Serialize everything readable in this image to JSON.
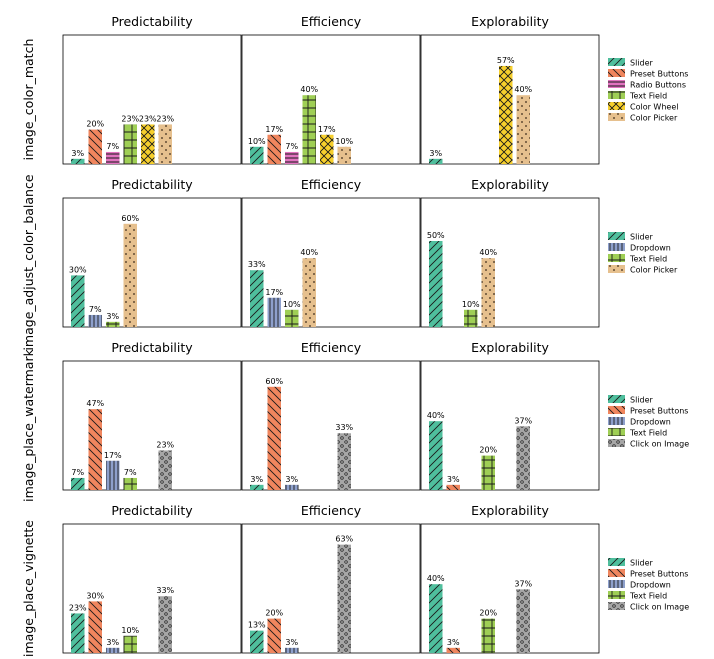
{
  "colors": {
    "Slider": "#4fbf9d",
    "Preset Buttons": "#f0865e",
    "Radio Buttons": "#e273c0",
    "Dropdown": "#8ea0cc",
    "Text Field": "#9fcf55",
    "Color Wheel": "#f6cf2c",
    "Color Picker": "#e6c08e",
    "Click on Image": "#a6a6a6"
  },
  "patterns": {
    "Slider": "diag-fwd",
    "Preset Buttons": "diag-back",
    "Radio Buttons": "horiz",
    "Dropdown": "vert",
    "Text Field": "grid",
    "Color Wheel": "xhatch",
    "Color Picker": "dots",
    "Click on Image": "circles"
  },
  "chart_data": [
    {
      "type": "bar",
      "row_label": "image_color_match",
      "series": [
        "Slider",
        "Preset Buttons",
        "Radio Buttons",
        "Text Field",
        "Color Wheel",
        "Color Picker"
      ],
      "ylim": [
        0,
        75
      ],
      "panels": [
        {
          "title": "Predictability",
          "values": [
            3,
            20,
            7,
            23,
            23,
            23
          ],
          "labels": [
            "3%",
            "20%",
            "7%",
            "23%",
            "23%",
            "23%"
          ]
        },
        {
          "title": "Efficiency",
          "values": [
            10,
            17,
            7,
            40,
            17,
            10
          ],
          "labels": [
            "10%",
            "17%",
            "7%",
            "40%",
            "17%",
            "10%"
          ]
        },
        {
          "title": "Explorability",
          "values": [
            3,
            0,
            0,
            0,
            57,
            40
          ],
          "labels": [
            "3%",
            "",
            "",
            "",
            "57%",
            "40%"
          ]
        }
      ]
    },
    {
      "type": "bar",
      "row_label": "image_adjust_color_balance",
      "series": [
        "Slider",
        "Dropdown",
        "Text Field",
        "Color Picker"
      ],
      "ylim": [
        0,
        75
      ],
      "panels": [
        {
          "title": "Predictability",
          "values": [
            30,
            7,
            3,
            60
          ],
          "labels": [
            "30%",
            "7%",
            "3%",
            "60%"
          ]
        },
        {
          "title": "Efficiency",
          "values": [
            33,
            17,
            10,
            40
          ],
          "labels": [
            "33%",
            "17%",
            "10%",
            "40%"
          ]
        },
        {
          "title": "Explorability",
          "values": [
            50,
            0,
            10,
            40
          ],
          "labels": [
            "50%",
            "",
            "10%",
            "40%"
          ]
        }
      ]
    },
    {
      "type": "bar",
      "row_label": "image_place_watermark",
      "series": [
        "Slider",
        "Preset Buttons",
        "Dropdown",
        "Text Field",
        "Click on Image"
      ],
      "ylim": [
        0,
        75
      ],
      "panels": [
        {
          "title": "Predictability",
          "values": [
            7,
            47,
            17,
            7,
            0,
            23
          ],
          "labels": [
            "7%",
            "47%",
            "17%",
            "7%",
            "",
            "23%"
          ],
          "slots": [
            0,
            1,
            2,
            3,
            4,
            4
          ]
        },
        {
          "title": "Efficiency",
          "values": [
            3,
            60,
            3,
            0,
            0,
            33
          ],
          "labels": [
            "3%",
            "60%",
            "3%",
            "",
            "",
            "33%"
          ],
          "slots": [
            0,
            1,
            2,
            3,
            4,
            4
          ]
        },
        {
          "title": "Explorability",
          "values": [
            40,
            3,
            0,
            20,
            0,
            37
          ],
          "labels": [
            "40%",
            "3%",
            "",
            "20%",
            "",
            "37%"
          ],
          "slots": [
            0,
            1,
            2,
            3,
            4,
            4
          ]
        }
      ]
    },
    {
      "type": "bar",
      "row_label": "image_place_vignette",
      "series": [
        "Slider",
        "Preset Buttons",
        "Dropdown",
        "Text Field",
        "Click on Image"
      ],
      "ylim": [
        0,
        75
      ],
      "panels": [
        {
          "title": "Predictability",
          "values": [
            23,
            30,
            3,
            10,
            0,
            33
          ],
          "labels": [
            "23%",
            "30%",
            "3%",
            "10%",
            "",
            "33%"
          ],
          "slots": [
            0,
            1,
            2,
            3,
            4,
            4
          ]
        },
        {
          "title": "Efficiency",
          "values": [
            13,
            20,
            3,
            0,
            0,
            63
          ],
          "labels": [
            "13%",
            "20%",
            "3%",
            "",
            "",
            "63%"
          ],
          "slots": [
            0,
            1,
            2,
            3,
            4,
            4
          ]
        },
        {
          "title": "Explorability",
          "values": [
            40,
            3,
            0,
            20,
            0,
            37
          ],
          "labels": [
            "40%",
            "3%",
            "",
            "20%",
            "",
            "37%"
          ],
          "slots": [
            0,
            1,
            2,
            3,
            4,
            4
          ]
        }
      ]
    }
  ]
}
